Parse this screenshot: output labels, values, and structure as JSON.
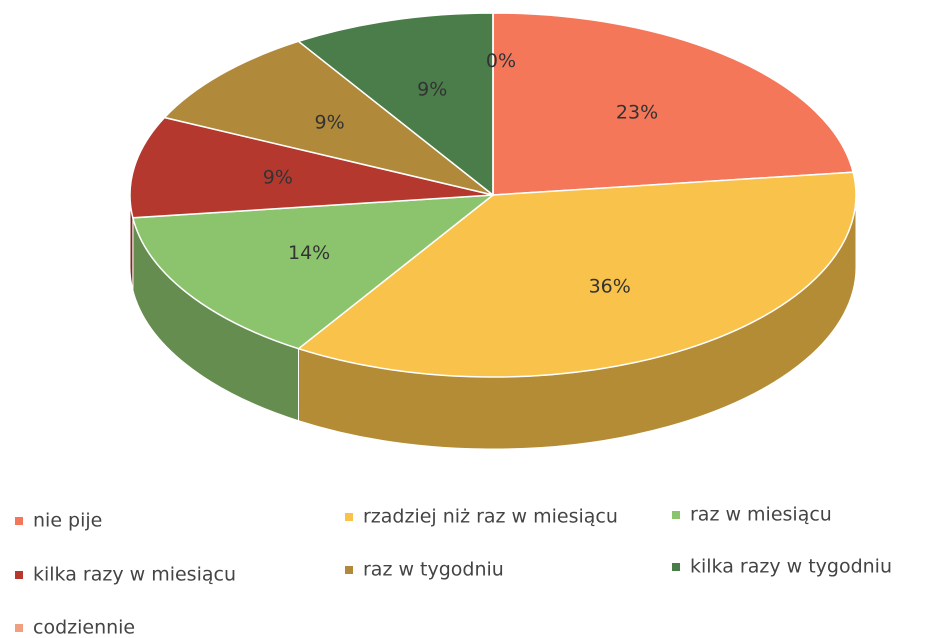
{
  "chart_data": {
    "type": "pie",
    "categories": [
      "nie pije",
      "rzadziej niż raz w miesiącu",
      "raz w miesiącu",
      "kilka razy w miesiącu",
      "raz w tygodniu",
      "kilka razy w tygodniu",
      "codziennie"
    ],
    "values": [
      23,
      36,
      14,
      9,
      9,
      9,
      0
    ],
    "value_labels": [
      "23%",
      "36%",
      "14%",
      "9%",
      "9%",
      "9%",
      "0%"
    ],
    "colors": [
      "#f4775a",
      "#f9c24a",
      "#8cc46e",
      "#b5382e",
      "#b08a3a",
      "#4a7d4a",
      "#f0a080"
    ],
    "legend": "bottom"
  }
}
